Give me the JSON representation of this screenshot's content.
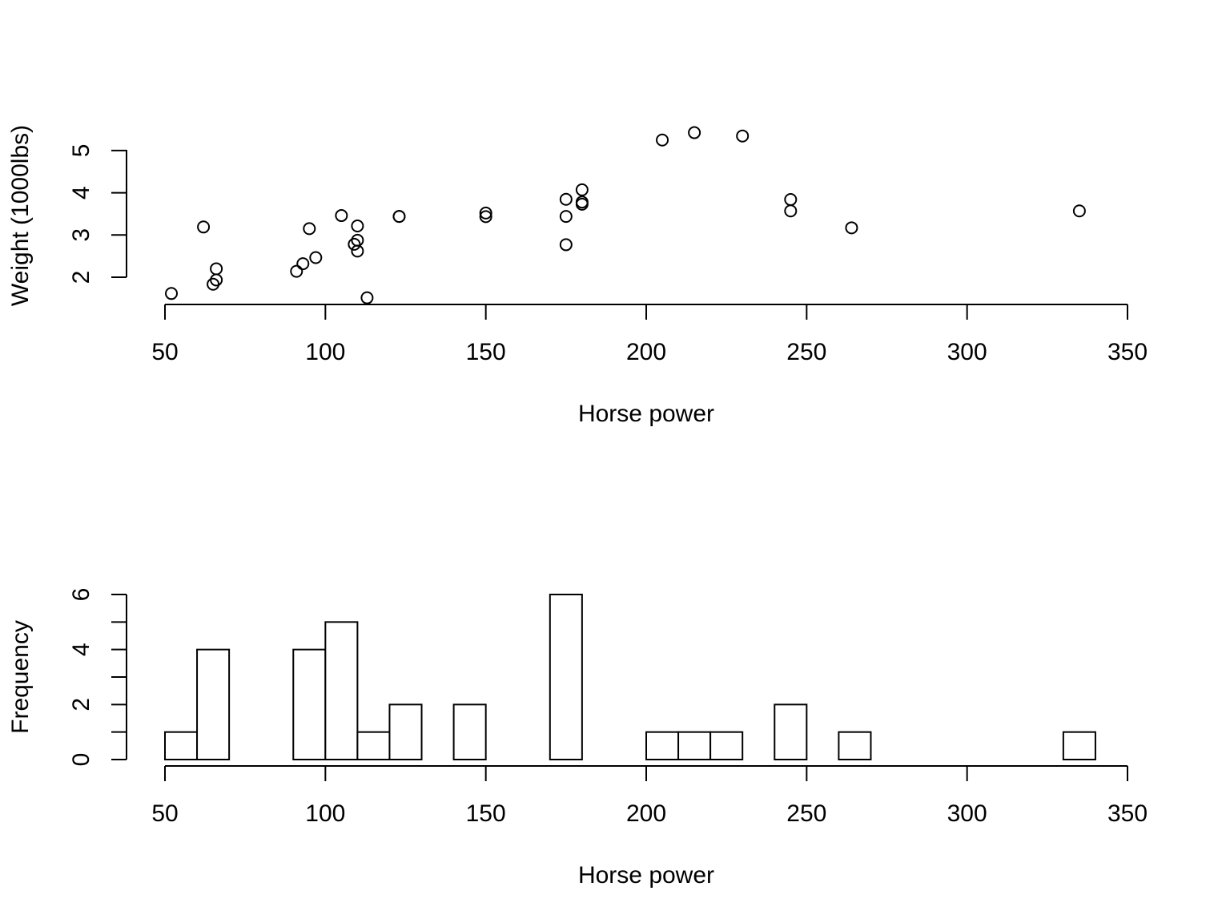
{
  "chart_data": [
    {
      "type": "scatter",
      "xlabel": "Horse power",
      "ylabel": "Weight (1000lbs)",
      "xlim": [
        50,
        350
      ],
      "x_ticks": [
        "50",
        "100",
        "150",
        "200",
        "250",
        "300",
        "350"
      ],
      "y_ticks": [
        "2",
        "3",
        "4",
        "5"
      ],
      "points": [
        {
          "x": 52,
          "y": 1.615
        },
        {
          "x": 62,
          "y": 3.19
        },
        {
          "x": 65,
          "y": 1.835
        },
        {
          "x": 66,
          "y": 1.935
        },
        {
          "x": 66,
          "y": 2.2
        },
        {
          "x": 91,
          "y": 2.14
        },
        {
          "x": 93,
          "y": 2.32
        },
        {
          "x": 95,
          "y": 3.15
        },
        {
          "x": 97,
          "y": 2.465
        },
        {
          "x": 105,
          "y": 3.46
        },
        {
          "x": 109,
          "y": 2.78
        },
        {
          "x": 110,
          "y": 2.62
        },
        {
          "x": 110,
          "y": 2.875
        },
        {
          "x": 110,
          "y": 3.215
        },
        {
          "x": 113,
          "y": 1.513
        },
        {
          "x": 123,
          "y": 3.44
        },
        {
          "x": 123,
          "y": 3.44
        },
        {
          "x": 150,
          "y": 3.52
        },
        {
          "x": 150,
          "y": 3.435
        },
        {
          "x": 175,
          "y": 3.44
        },
        {
          "x": 175,
          "y": 3.845
        },
        {
          "x": 175,
          "y": 2.77
        },
        {
          "x": 180,
          "y": 4.07
        },
        {
          "x": 180,
          "y": 3.73
        },
        {
          "x": 180,
          "y": 3.78
        },
        {
          "x": 205,
          "y": 5.25
        },
        {
          "x": 215,
          "y": 5.424
        },
        {
          "x": 230,
          "y": 5.345
        },
        {
          "x": 245,
          "y": 3.57
        },
        {
          "x": 245,
          "y": 3.84
        },
        {
          "x": 264,
          "y": 3.17
        },
        {
          "x": 335,
          "y": 3.57
        }
      ]
    },
    {
      "type": "bar",
      "xlabel": "Horse power",
      "ylabel": "Frequency",
      "xlim": [
        50,
        350
      ],
      "x_ticks": [
        "50",
        "100",
        "150",
        "200",
        "250",
        "300",
        "350"
      ],
      "y_ticks": [
        "0",
        "2",
        "4",
        "6"
      ],
      "bin_width": 10,
      "bins": [
        {
          "from": 50,
          "to": 60,
          "count": 1
        },
        {
          "from": 60,
          "to": 70,
          "count": 4
        },
        {
          "from": 70,
          "to": 80,
          "count": 0
        },
        {
          "from": 80,
          "to": 90,
          "count": 0
        },
        {
          "from": 90,
          "to": 100,
          "count": 4
        },
        {
          "from": 100,
          "to": 110,
          "count": 5
        },
        {
          "from": 110,
          "to": 120,
          "count": 1
        },
        {
          "from": 120,
          "to": 130,
          "count": 2
        },
        {
          "from": 130,
          "to": 140,
          "count": 0
        },
        {
          "from": 140,
          "to": 150,
          "count": 2
        },
        {
          "from": 150,
          "to": 160,
          "count": 0
        },
        {
          "from": 160,
          "to": 170,
          "count": 0
        },
        {
          "from": 170,
          "to": 180,
          "count": 6
        },
        {
          "from": 180,
          "to": 190,
          "count": 0
        },
        {
          "from": 190,
          "to": 200,
          "count": 0
        },
        {
          "from": 200,
          "to": 210,
          "count": 1
        },
        {
          "from": 210,
          "to": 220,
          "count": 1
        },
        {
          "from": 220,
          "to": 230,
          "count": 1
        },
        {
          "from": 230,
          "to": 240,
          "count": 0
        },
        {
          "from": 240,
          "to": 250,
          "count": 2
        },
        {
          "from": 250,
          "to": 260,
          "count": 0
        },
        {
          "from": 260,
          "to": 270,
          "count": 1
        },
        {
          "from": 270,
          "to": 280,
          "count": 0
        },
        {
          "from": 280,
          "to": 290,
          "count": 0
        },
        {
          "from": 290,
          "to": 300,
          "count": 0
        },
        {
          "from": 300,
          "to": 310,
          "count": 0
        },
        {
          "from": 310,
          "to": 320,
          "count": 0
        },
        {
          "from": 320,
          "to": 330,
          "count": 0
        },
        {
          "from": 330,
          "to": 340,
          "count": 1
        }
      ]
    }
  ]
}
